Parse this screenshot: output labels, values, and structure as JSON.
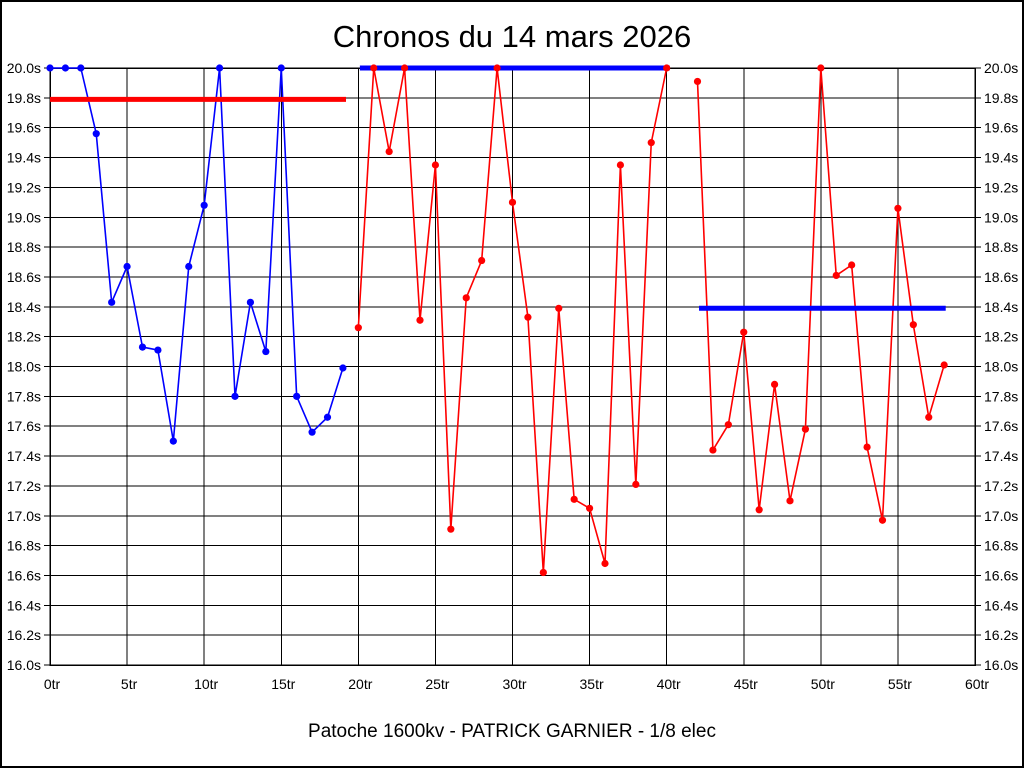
{
  "chart_data": {
    "type": "line",
    "title": "Chronos du 14 mars 2026",
    "caption": "Patoche 1600kv - PATRICK GARNIER - 1/8 elec",
    "xlabel": "",
    "ylabel": "",
    "xlim": [
      0,
      60
    ],
    "ylim": [
      16.0,
      20.0
    ],
    "grid": true,
    "legend": "none",
    "x_ticks": [
      0,
      5,
      10,
      15,
      20,
      25,
      30,
      35,
      40,
      45,
      50,
      55,
      60
    ],
    "y_ticks": [
      16.0,
      16.2,
      16.4,
      16.6,
      16.8,
      17.0,
      17.2,
      17.4,
      17.6,
      17.8,
      18.0,
      18.2,
      18.4,
      18.6,
      18.8,
      19.0,
      19.2,
      19.4,
      19.6,
      19.8,
      20.0
    ],
    "tick_format": {
      "x_suffix": "tr",
      "y_suffix": "s",
      "y_decimals": 1
    },
    "colors": {
      "blue_series": "#0000ff",
      "red_series": "#ff0000",
      "grid": "#000000"
    },
    "series": [
      {
        "name": "bleu",
        "color": "#0000ff",
        "points": [
          [
            0,
            20.0
          ],
          [
            1,
            20.0
          ],
          [
            2,
            20.0
          ],
          [
            3,
            19.56
          ],
          [
            4,
            18.43
          ],
          [
            5,
            18.67
          ],
          [
            6,
            18.13
          ],
          [
            7,
            18.11
          ],
          [
            8,
            17.5
          ],
          [
            9,
            18.67
          ],
          [
            10,
            19.08
          ],
          [
            11,
            20.0
          ],
          [
            12,
            17.8
          ],
          [
            13,
            18.43
          ],
          [
            14,
            18.1
          ],
          [
            15,
            20.0
          ],
          [
            16,
            17.8
          ],
          [
            17,
            17.56
          ],
          [
            18,
            17.66
          ],
          [
            19,
            17.99
          ]
        ]
      },
      {
        "name": "rouge",
        "color": "#ff0000",
        "points": [
          [
            20,
            18.26
          ],
          [
            21,
            20.0
          ],
          [
            22,
            19.44
          ],
          [
            23,
            20.0
          ],
          [
            24,
            18.31
          ],
          [
            25,
            19.35
          ],
          [
            26,
            16.91
          ],
          [
            27,
            18.46
          ],
          [
            28,
            18.71
          ],
          [
            29,
            20.0
          ],
          [
            30,
            19.1
          ],
          [
            31,
            18.33
          ],
          [
            32,
            16.62
          ],
          [
            33,
            18.39
          ],
          [
            34,
            17.11
          ],
          [
            35,
            17.05
          ],
          [
            36,
            16.68
          ],
          [
            37,
            19.35
          ],
          [
            38,
            17.21
          ],
          [
            39,
            19.5
          ],
          [
            40,
            20.0
          ],
          [
            42,
            19.91
          ],
          [
            43,
            17.44
          ],
          [
            44,
            17.61
          ],
          [
            45,
            18.23
          ],
          [
            46,
            17.04
          ],
          [
            47,
            17.88
          ],
          [
            48,
            17.1
          ],
          [
            49,
            17.58
          ],
          [
            50,
            20.0
          ],
          [
            51,
            18.61
          ],
          [
            52,
            18.68
          ],
          [
            53,
            17.46
          ],
          [
            54,
            16.97
          ],
          [
            55,
            19.06
          ],
          [
            56,
            18.28
          ],
          [
            57,
            17.66
          ],
          [
            58,
            18.01
          ]
        ]
      }
    ],
    "reference_lines": [
      {
        "name": "rouge-19-8",
        "color": "#ff0000",
        "y": 19.79,
        "x_start": 0,
        "x_end": 19.2
      },
      {
        "name": "bleu-20-0",
        "color": "#0000ff",
        "y": 20.0,
        "x_start": 20.1,
        "x_end": 40.2
      },
      {
        "name": "bleu-18-4",
        "color": "#0000ff",
        "y": 18.39,
        "x_start": 42.1,
        "x_end": 58.1
      }
    ]
  }
}
